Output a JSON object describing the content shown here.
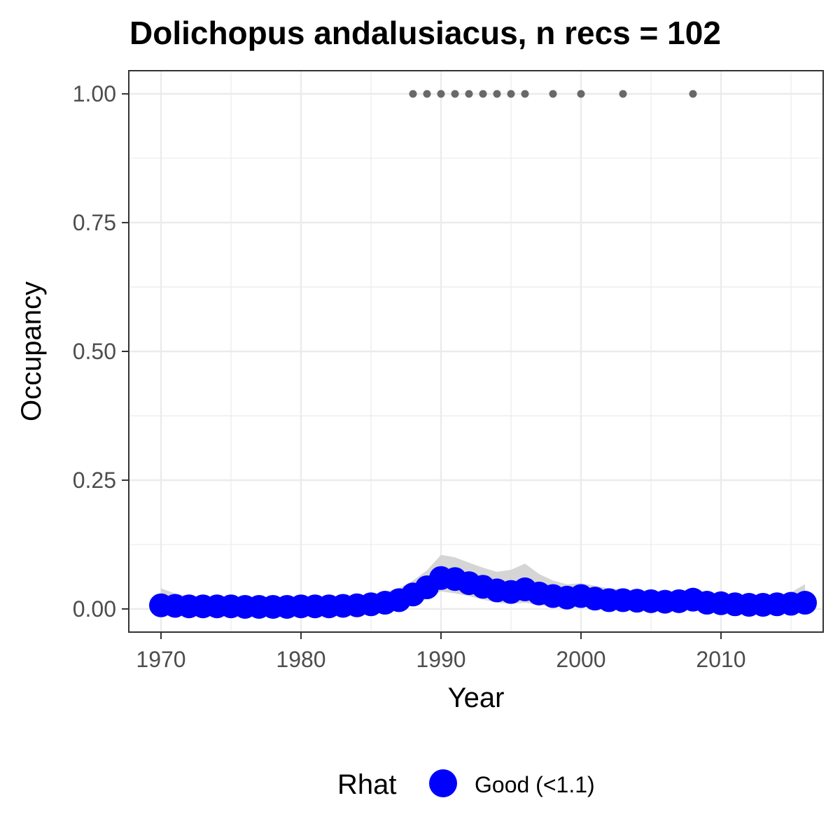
{
  "chart_data": {
    "type": "line",
    "title": "Dolichopus andalusiacus, n recs = 102",
    "xlabel": "Year",
    "ylabel": "Occupancy",
    "xlim": [
      1967.7,
      2017.3
    ],
    "ylim": [
      -0.045,
      1.045
    ],
    "x_ticks": [
      1970,
      1980,
      1990,
      2000,
      2010
    ],
    "x_tick_labels": [
      "1970",
      "1980",
      "1990",
      "2000",
      "2010"
    ],
    "y_ticks": [
      0,
      0.25,
      0.5,
      0.75,
      1
    ],
    "y_tick_labels": [
      "0.00",
      "0.25",
      "0.50",
      "0.75",
      "1.00"
    ],
    "grid": true,
    "legend": {
      "position": "bottom",
      "title": "Rhat",
      "entries": [
        {
          "label": "Good (<1.1)",
          "color": "#0000ff"
        }
      ]
    },
    "colors": {
      "series": "#0000ff",
      "ribbon": "#d3d3d3",
      "records": "#696969",
      "grid": "#ebebeb",
      "panel_border": "#333333"
    },
    "series": [
      {
        "kind": "occupancy",
        "x": [
          1970,
          1971,
          1972,
          1973,
          1974,
          1975,
          1976,
          1977,
          1978,
          1979,
          1980,
          1981,
          1982,
          1983,
          1984,
          1985,
          1986,
          1987,
          1988,
          1989,
          1990,
          1991,
          1992,
          1993,
          1994,
          1995,
          1996,
          1997,
          1998,
          1999,
          2000,
          2001,
          2002,
          2003,
          2004,
          2005,
          2006,
          2007,
          2008,
          2009,
          2010,
          2011,
          2012,
          2013,
          2014,
          2015,
          2016
        ],
        "y": [
          0.007,
          0.006,
          0.005,
          0.005,
          0.005,
          0.005,
          0.004,
          0.004,
          0.004,
          0.004,
          0.005,
          0.005,
          0.005,
          0.006,
          0.007,
          0.009,
          0.012,
          0.017,
          0.028,
          0.042,
          0.06,
          0.058,
          0.05,
          0.043,
          0.036,
          0.033,
          0.038,
          0.03,
          0.025,
          0.022,
          0.025,
          0.02,
          0.017,
          0.017,
          0.016,
          0.015,
          0.014,
          0.015,
          0.018,
          0.012,
          0.011,
          0.009,
          0.008,
          0.008,
          0.009,
          0.01,
          0.012
        ]
      }
    ],
    "ribbon": {
      "x": [
        1970,
        1971,
        1972,
        1973,
        1974,
        1975,
        1976,
        1977,
        1978,
        1979,
        1980,
        1981,
        1982,
        1983,
        1984,
        1985,
        1986,
        1987,
        1988,
        1989,
        1990,
        1991,
        1992,
        1993,
        1994,
        1995,
        1996,
        1997,
        1998,
        1999,
        2000,
        2001,
        2002,
        2003,
        2004,
        2005,
        2006,
        2007,
        2008,
        2009,
        2010,
        2011,
        2012,
        2013,
        2014,
        2015,
        2016
      ],
      "lower": [
        0,
        0,
        0,
        0,
        0,
        0,
        0,
        0,
        0,
        0,
        0,
        0,
        0,
        0,
        0,
        0,
        0,
        0,
        0.008,
        0.02,
        0.034,
        0.03,
        0.025,
        0.018,
        0.012,
        0.01,
        0.012,
        0.008,
        0.004,
        0.002,
        0.004,
        0.002,
        0.001,
        0.001,
        0.001,
        0.001,
        0.001,
        0.001,
        0.002,
        0.001,
        0,
        0,
        0,
        0,
        0,
        0,
        0
      ],
      "upper": [
        0.04,
        0.03,
        0.024,
        0.022,
        0.021,
        0.02,
        0.019,
        0.019,
        0.019,
        0.019,
        0.02,
        0.021,
        0.022,
        0.023,
        0.025,
        0.028,
        0.033,
        0.04,
        0.055,
        0.075,
        0.105,
        0.1,
        0.09,
        0.08,
        0.072,
        0.076,
        0.088,
        0.068,
        0.055,
        0.048,
        0.05,
        0.045,
        0.04,
        0.038,
        0.036,
        0.035,
        0.034,
        0.035,
        0.04,
        0.032,
        0.028,
        0.025,
        0.023,
        0.023,
        0.026,
        0.032,
        0.048
      ]
    },
    "records": {
      "x": [
        1988,
        1989,
        1990,
        1991,
        1992,
        1993,
        1994,
        1995,
        1996,
        1998,
        2000,
        2003,
        2008
      ],
      "y": [
        1,
        1,
        1,
        1,
        1,
        1,
        1,
        1,
        1,
        1,
        1,
        1,
        1
      ]
    }
  }
}
